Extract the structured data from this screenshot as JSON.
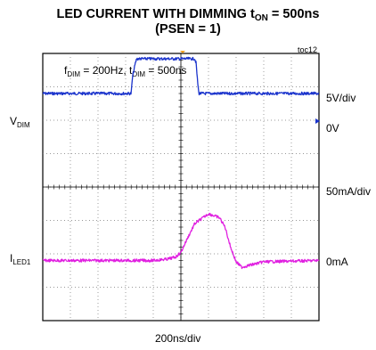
{
  "chart_data": {
    "type": "line",
    "title": {
      "line1_main": "LED CURRENT WITH DIMMING t",
      "line1_sub": "ON",
      "line1_tail": " = 500ns",
      "line2": "(PSEN = 1)"
    },
    "figure_id": "toc12",
    "annotation": {
      "f_main": "f",
      "f_sub": "DIM",
      "f_value": " = 200Hz, t",
      "t_sub": "DIM",
      "t_value": " = 500ns"
    },
    "x_scale_label": "200ns/div",
    "x_divisions": 10,
    "y_divisions": 8,
    "grid": true,
    "series": [
      {
        "name_main": "V",
        "name_sub": "DIM",
        "color": "#1a33cc",
        "scale_label": "5V/div",
        "zero_label": "0V",
        "zero_division": 6.8,
        "divisions_per_unit": 0.2,
        "x_div": [
          0,
          3.2,
          3.25,
          3.35,
          3.4,
          5.5,
          5.55,
          5.6,
          5.65,
          10
        ],
        "y": [
          0,
          0,
          2.5,
          4.5,
          5.2,
          5.2,
          4.6,
          2.0,
          0,
          0
        ]
      },
      {
        "name_main": "I",
        "name_sub": "LED1",
        "color": "#e020e0",
        "scale_label": "50mA/div",
        "zero_label": "0mA",
        "zero_division": 1.8,
        "divisions_per_unit": 0.02,
        "x_div": [
          0,
          4.0,
          4.5,
          4.8,
          5.0,
          5.2,
          5.5,
          6.0,
          6.4,
          6.6,
          6.8,
          7.0,
          7.2,
          7.6,
          8.0,
          10
        ],
        "y": [
          0,
          0,
          2,
          5,
          12,
          30,
          55,
          70,
          64,
          50,
          20,
          -2,
          -10,
          -6,
          -2,
          0
        ]
      }
    ]
  }
}
